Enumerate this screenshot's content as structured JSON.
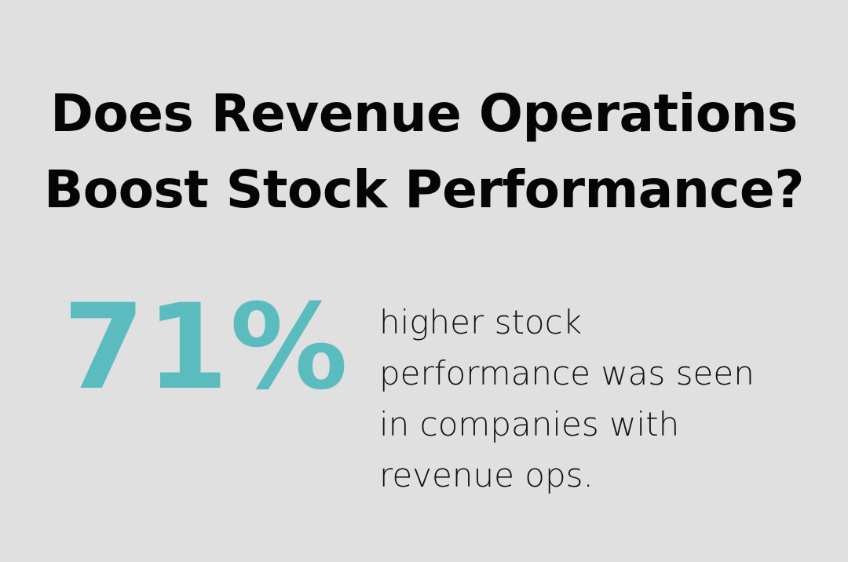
{
  "title": {
    "lines": [
      "Does Revenue Operations",
      "Boost Stock Performance?"
    ]
  },
  "stat": {
    "value": "71%",
    "description_lines": [
      "higher stock",
      "performance was seen",
      "in companies with",
      "revenue ops."
    ]
  },
  "colors": {
    "background": "#dfe0df",
    "accent": "#5bbcbf",
    "text": "#050505"
  }
}
